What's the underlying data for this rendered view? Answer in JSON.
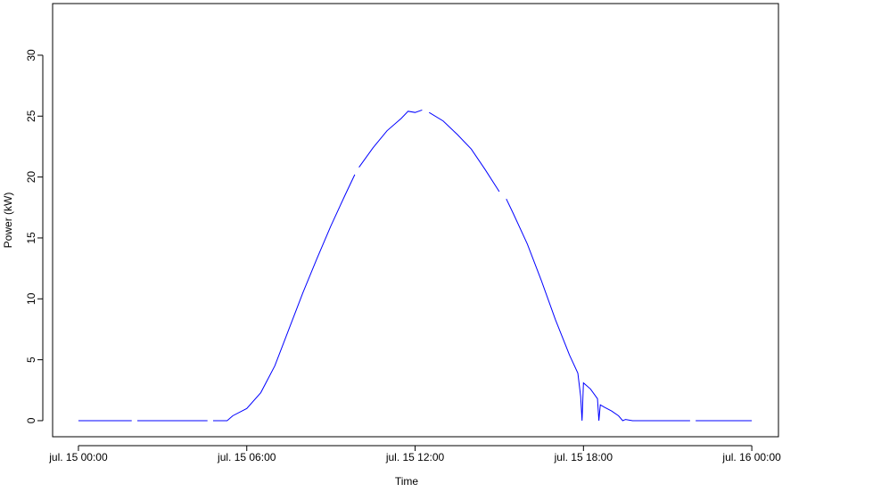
{
  "chart_data": {
    "type": "line",
    "x_label": "Time",
    "y_label": "Power (kW)",
    "x": [
      0,
      0.5,
      1,
      1.5,
      1.9,
      2.0,
      2.1,
      3,
      4,
      4.6,
      4.7,
      4.8,
      5,
      5.3,
      5.5,
      6,
      6.5,
      7,
      7.5,
      8,
      8.5,
      9,
      9.5,
      9.85,
      9.9,
      10,
      10.5,
      11,
      11.5,
      11.75,
      12,
      12.25,
      12.35,
      12.5,
      13,
      13.5,
      14,
      14.5,
      15,
      15.1,
      15.25,
      15.5,
      16,
      16.5,
      17,
      17.5,
      17.8,
      17.9,
      17.95,
      18.0,
      18.25,
      18.5,
      18.55,
      18.6,
      18.75,
      19.0,
      19.25,
      19.4,
      19.5,
      19.75,
      20,
      21,
      21.8,
      21.9,
      22,
      23,
      24
    ],
    "series": [
      {
        "color": "#0000ff",
        "values": [
          0,
          0,
          0,
          0,
          0,
          null,
          0,
          0,
          0,
          0,
          null,
          0,
          0,
          0,
          0.4,
          1.0,
          2.3,
          4.5,
          7.5,
          10.5,
          13.3,
          16,
          18.5,
          20.2,
          null,
          20.8,
          22.4,
          23.8,
          24.8,
          25.4,
          25.3,
          25.5,
          null,
          25.3,
          24.6,
          23.5,
          22.3,
          20.6,
          18.8,
          null,
          18.2,
          17,
          14.5,
          11.5,
          8.3,
          5.4,
          3.9,
          2,
          0,
          3.1,
          2.6,
          1.8,
          0,
          1.3,
          1.1,
          0.8,
          0.4,
          0,
          0.1,
          0,
          0,
          0,
          0,
          null,
          0,
          0,
          0
        ]
      }
    ],
    "xlim": [
      -0.92,
      24.95
    ],
    "ylim": [
      -1.32,
      34.24
    ],
    "xticks": [
      {
        "value": 0,
        "label": "jul. 15 00:00"
      },
      {
        "value": 6,
        "label": "jul. 15 06:00"
      },
      {
        "value": 12,
        "label": "jul. 15 12:00"
      },
      {
        "value": 18,
        "label": "jul. 15 18:00"
      },
      {
        "value": 24,
        "label": "jul. 16 00:00"
      }
    ],
    "yticks": [
      0,
      5,
      10,
      15,
      20,
      25,
      30
    ]
  }
}
